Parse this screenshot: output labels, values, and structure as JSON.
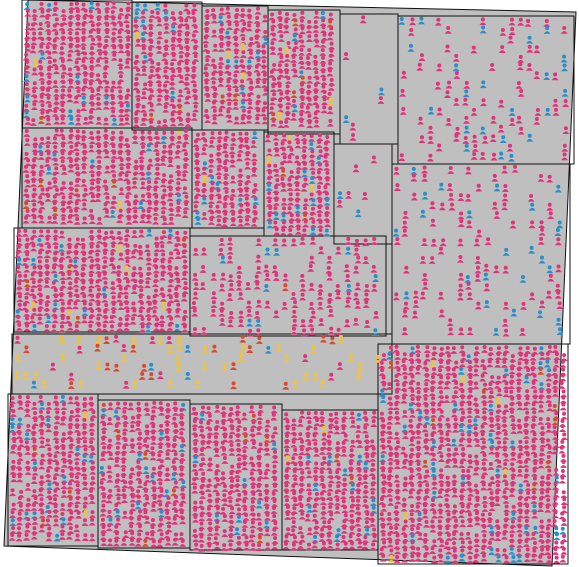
{
  "colors": {
    "background": "#ffffff",
    "ground": "#bfbfbf",
    "border": "#111111",
    "pink": "#e0337a",
    "blue": "#2a8fc8",
    "yellow": "#f2c23b",
    "red": "#d84a2c"
  },
  "agent_types": [
    "pink",
    "blue",
    "yellow",
    "red"
  ],
  "icons": {
    "agent": "person-icon"
  },
  "city": {
    "districts": 18,
    "description_hidden": true
  }
}
